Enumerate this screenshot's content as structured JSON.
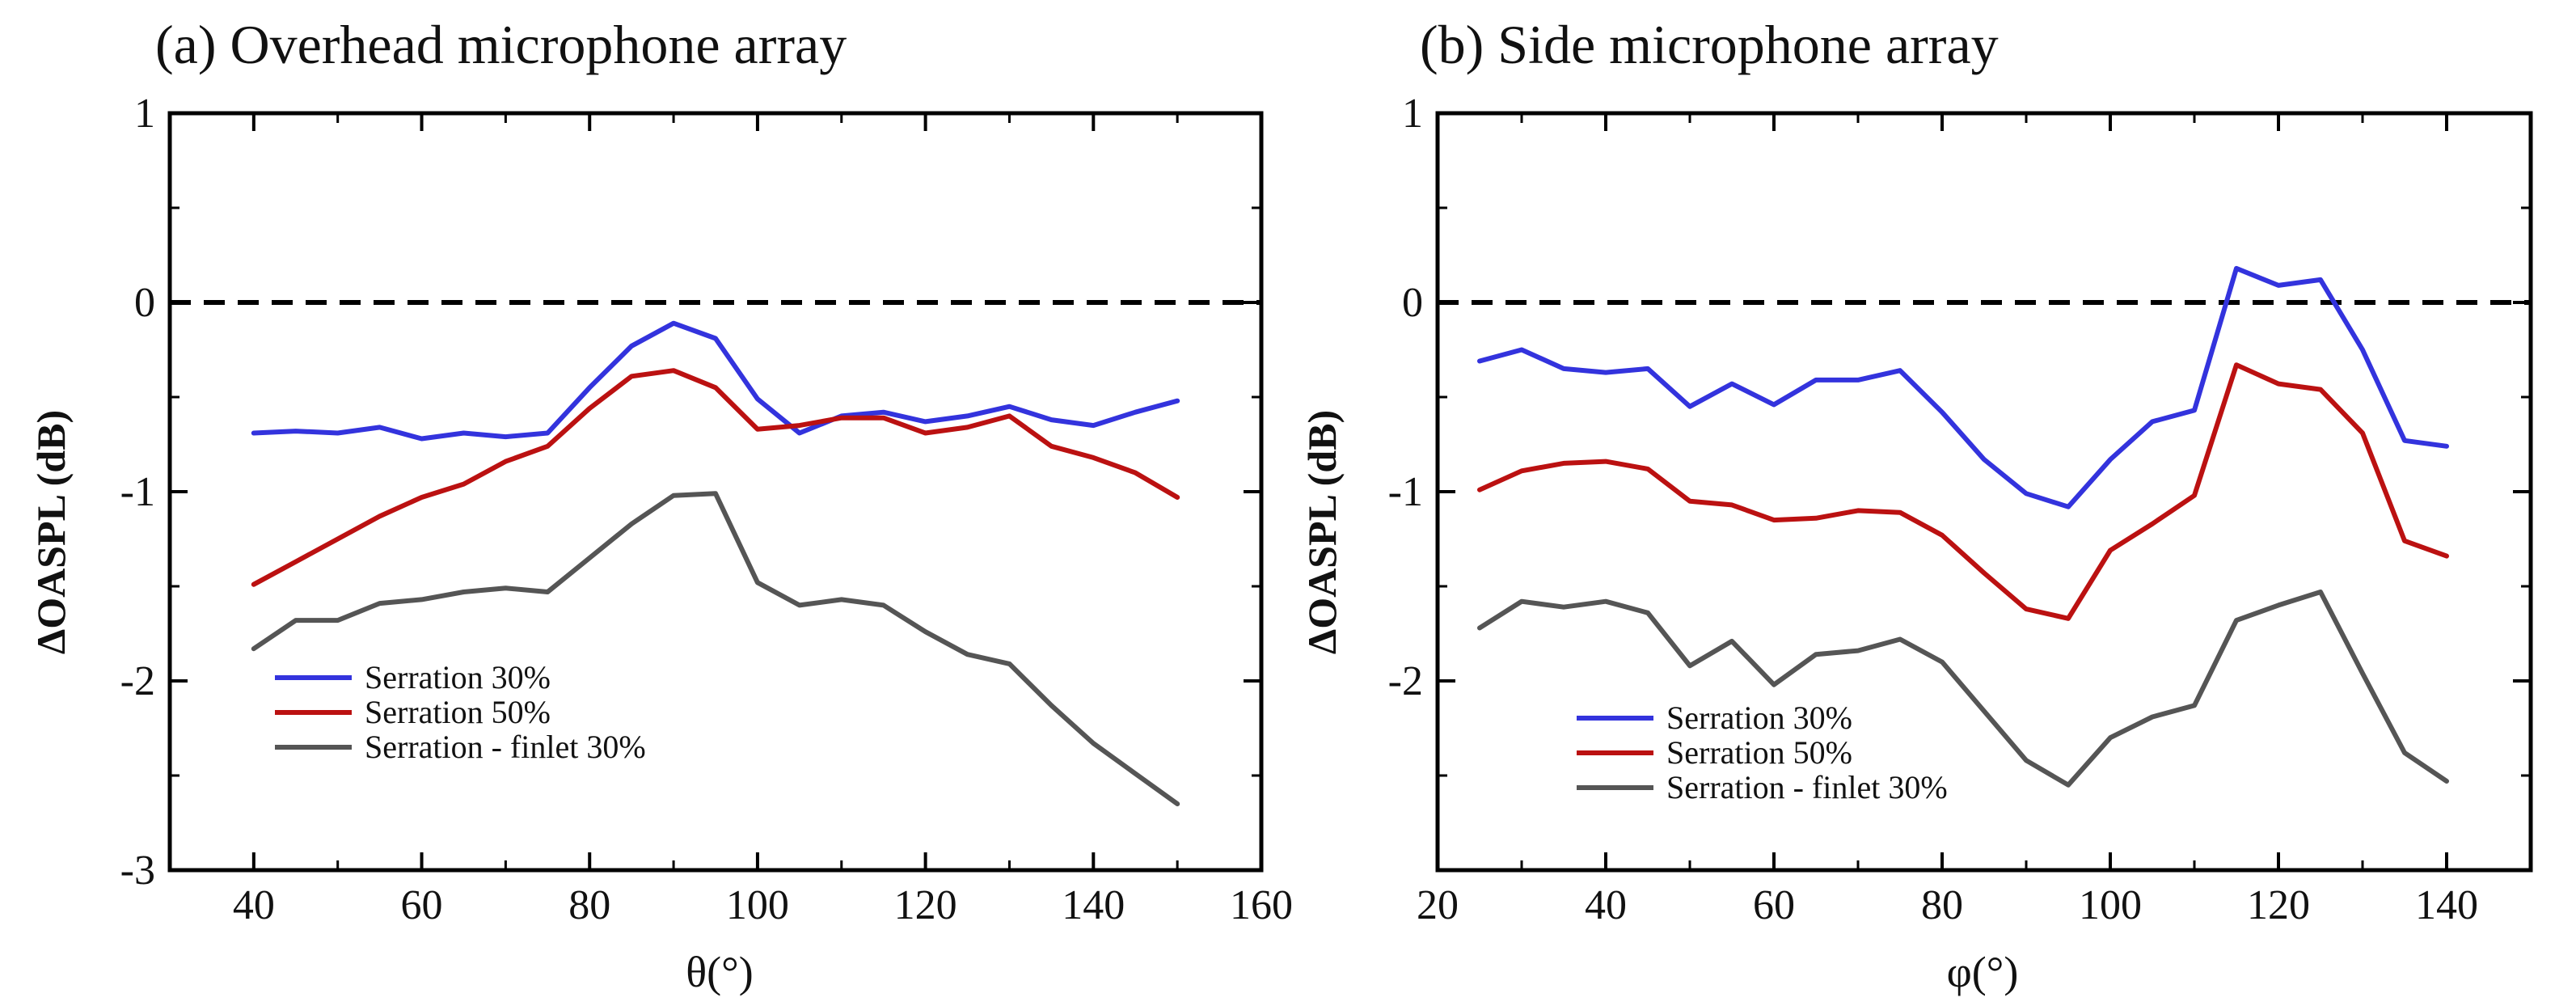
{
  "chart_data": [
    {
      "type": "line",
      "title": "(a) Overhead microphone array",
      "xlabel": "θ(°)",
      "ylabel": "ΔOASPL (dB)",
      "xlim": [
        30,
        160
      ],
      "ylim": [
        -3,
        1
      ],
      "xticks": [
        40,
        60,
        80,
        100,
        120,
        140,
        160
      ],
      "yticks": [
        -3,
        -2,
        -1,
        0,
        1
      ],
      "reference_line": {
        "y": 0,
        "style": "dashed"
      },
      "legend_location": "lower-left",
      "series": [
        {
          "name": "Serration 30%",
          "color": "#3333dd",
          "x": [
            40,
            45,
            50,
            55,
            60,
            65,
            70,
            75,
            80,
            85,
            90,
            95,
            100,
            105,
            110,
            115,
            120,
            125,
            130,
            135,
            140,
            145,
            150
          ],
          "y": [
            -0.69,
            -0.68,
            -0.69,
            -0.66,
            -0.72,
            -0.69,
            -0.71,
            -0.69,
            -0.45,
            -0.23,
            -0.11,
            -0.19,
            -0.51,
            -0.69,
            -0.6,
            -0.58,
            -0.63,
            -0.6,
            -0.55,
            -0.62,
            -0.65,
            -0.58,
            -0.52
          ]
        },
        {
          "name": "Serration 50%",
          "color": "#bb1111",
          "x": [
            40,
            45,
            50,
            55,
            60,
            65,
            70,
            75,
            80,
            85,
            90,
            95,
            100,
            105,
            110,
            115,
            120,
            125,
            130,
            135,
            140,
            145,
            150
          ],
          "y": [
            -1.49,
            -1.37,
            -1.25,
            -1.13,
            -1.03,
            -0.96,
            -0.84,
            -0.76,
            -0.56,
            -0.39,
            -0.36,
            -0.45,
            -0.67,
            -0.65,
            -0.61,
            -0.61,
            -0.69,
            -0.66,
            -0.6,
            -0.76,
            -0.82,
            -0.9,
            -1.03
          ]
        },
        {
          "name": "Serration - finlet 30%",
          "color": "#555555",
          "x": [
            40,
            45,
            50,
            55,
            60,
            65,
            70,
            75,
            80,
            85,
            90,
            95,
            100,
            105,
            110,
            115,
            120,
            125,
            130,
            135,
            140,
            145,
            150
          ],
          "y": [
            -1.83,
            -1.68,
            -1.68,
            -1.59,
            -1.57,
            -1.53,
            -1.51,
            -1.53,
            -1.35,
            -1.17,
            -1.02,
            -1.01,
            -1.48,
            -1.6,
            -1.57,
            -1.6,
            -1.74,
            -1.86,
            -1.91,
            -2.13,
            -2.33,
            -2.49,
            -2.65
          ]
        }
      ]
    },
    {
      "type": "line",
      "title": "(b) Side microphone array",
      "xlabel": "φ(°)",
      "ylabel": "ΔOASPL (dB)",
      "xlim": [
        20,
        150
      ],
      "ylim": [
        -3,
        1
      ],
      "xticks": [
        20,
        40,
        60,
        80,
        100,
        120,
        140
      ],
      "yticks": [
        -2,
        -1,
        0,
        1
      ],
      "reference_line": {
        "y": 0,
        "style": "dashed"
      },
      "legend_location": "lower-left",
      "series": [
        {
          "name": "Serration 30%",
          "color": "#3333dd",
          "x": [
            25,
            30,
            35,
            40,
            45,
            50,
            55,
            60,
            65,
            70,
            75,
            80,
            85,
            90,
            95,
            100,
            105,
            110,
            115,
            120,
            125,
            130,
            135,
            140
          ],
          "y": [
            -0.31,
            -0.25,
            -0.35,
            -0.37,
            -0.35,
            -0.55,
            -0.43,
            -0.54,
            -0.41,
            -0.41,
            -0.36,
            -0.58,
            -0.83,
            -1.01,
            -1.08,
            -0.83,
            -0.63,
            -0.57,
            0.18,
            0.09,
            0.12,
            -0.25,
            -0.73,
            -0.76
          ]
        },
        {
          "name": "Serration 50%",
          "color": "#bb1111",
          "x": [
            25,
            30,
            35,
            40,
            45,
            50,
            55,
            60,
            65,
            70,
            75,
            80,
            85,
            90,
            95,
            100,
            105,
            110,
            115,
            120,
            125,
            130,
            135,
            140
          ],
          "y": [
            -0.99,
            -0.89,
            -0.85,
            -0.84,
            -0.88,
            -1.05,
            -1.07,
            -1.15,
            -1.14,
            -1.1,
            -1.11,
            -1.23,
            -1.43,
            -1.62,
            -1.67,
            -1.31,
            -1.17,
            -1.02,
            -0.33,
            -0.43,
            -0.46,
            -0.69,
            -1.26,
            -1.34
          ]
        },
        {
          "name": "Serration - finlet 30%",
          "color": "#555555",
          "x": [
            25,
            30,
            35,
            40,
            45,
            50,
            55,
            60,
            65,
            70,
            75,
            80,
            85,
            90,
            95,
            100,
            105,
            110,
            115,
            120,
            125,
            130,
            135,
            140
          ],
          "y": [
            -1.72,
            -1.58,
            -1.61,
            -1.58,
            -1.64,
            -1.92,
            -1.79,
            -2.02,
            -1.86,
            -1.84,
            -1.78,
            -1.9,
            -2.16,
            -2.42,
            -2.55,
            -2.3,
            -2.19,
            -2.13,
            -1.68,
            -1.6,
            -1.53,
            -1.96,
            -2.38,
            -2.53
          ]
        }
      ]
    }
  ]
}
